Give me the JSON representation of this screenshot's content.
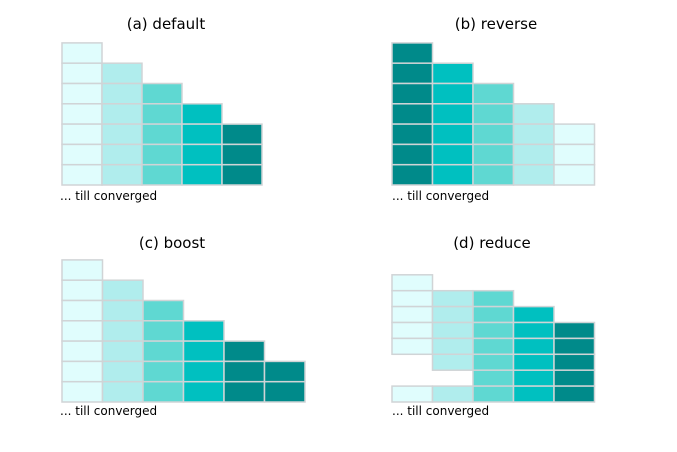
{
  "figure": {
    "palette": [
      "#e0fdfd",
      "#b0eded",
      "#5fd8d2",
      "#00c0c0",
      "#008a8a"
    ],
    "cell_border": "#d0d4d6",
    "panels": [
      {
        "title": "(a) default",
        "caption": "... till converged",
        "columns": [
          {
            "segments": [
              {
                "cells": 7,
                "shade": 0
              }
            ]
          },
          {
            "segments": [
              {
                "cells": 6,
                "shade": 1
              }
            ]
          },
          {
            "segments": [
              {
                "cells": 5,
                "shade": 2
              }
            ]
          },
          {
            "segments": [
              {
                "cells": 4,
                "shade": 3
              }
            ]
          },
          {
            "segments": [
              {
                "cells": 3,
                "shade": 4
              }
            ]
          }
        ]
      },
      {
        "title": "(b) reverse",
        "caption": "... till converged",
        "columns": [
          {
            "segments": [
              {
                "cells": 7,
                "shade": 4
              }
            ]
          },
          {
            "segments": [
              {
                "cells": 6,
                "shade": 3
              }
            ]
          },
          {
            "segments": [
              {
                "cells": 5,
                "shade": 2
              }
            ]
          },
          {
            "segments": [
              {
                "cells": 4,
                "shade": 1
              }
            ]
          },
          {
            "segments": [
              {
                "cells": 3,
                "shade": 0
              }
            ]
          }
        ]
      },
      {
        "title": "(c) boost",
        "caption": "... till converged",
        "columns": [
          {
            "segments": [
              {
                "cells": 7,
                "shade": 0
              }
            ]
          },
          {
            "segments": [
              {
                "cells": 6,
                "shade": 1
              }
            ]
          },
          {
            "segments": [
              {
                "cells": 5,
                "shade": 2
              }
            ]
          },
          {
            "segments": [
              {
                "cells": 4,
                "shade": 3
              }
            ]
          },
          {
            "segments": [
              {
                "cells": 3,
                "shade": 4
              }
            ]
          },
          {
            "segments": [
              {
                "cells": 2,
                "shade": 4
              }
            ]
          }
        ]
      },
      {
        "title": "(d) reduce",
        "caption": "... till converged",
        "columns": [
          {
            "segments": [
              {
                "cells": 5,
                "shade": 0
              },
              {
                "cells": 2,
                "shade": null
              },
              {
                "cells": 1,
                "shade": 0
              }
            ]
          },
          {
            "segments": [
              {
                "cells": 5,
                "shade": 1
              },
              {
                "cells": 1,
                "shade": null
              },
              {
                "cells": 1,
                "shade": 1
              }
            ]
          },
          {
            "segments": [
              {
                "cells": 7,
                "shade": 2
              }
            ]
          },
          {
            "segments": [
              {
                "cells": 6,
                "shade": 3
              }
            ]
          },
          {
            "segments": [
              {
                "cells": 5,
                "shade": 4
              }
            ]
          }
        ]
      }
    ]
  }
}
